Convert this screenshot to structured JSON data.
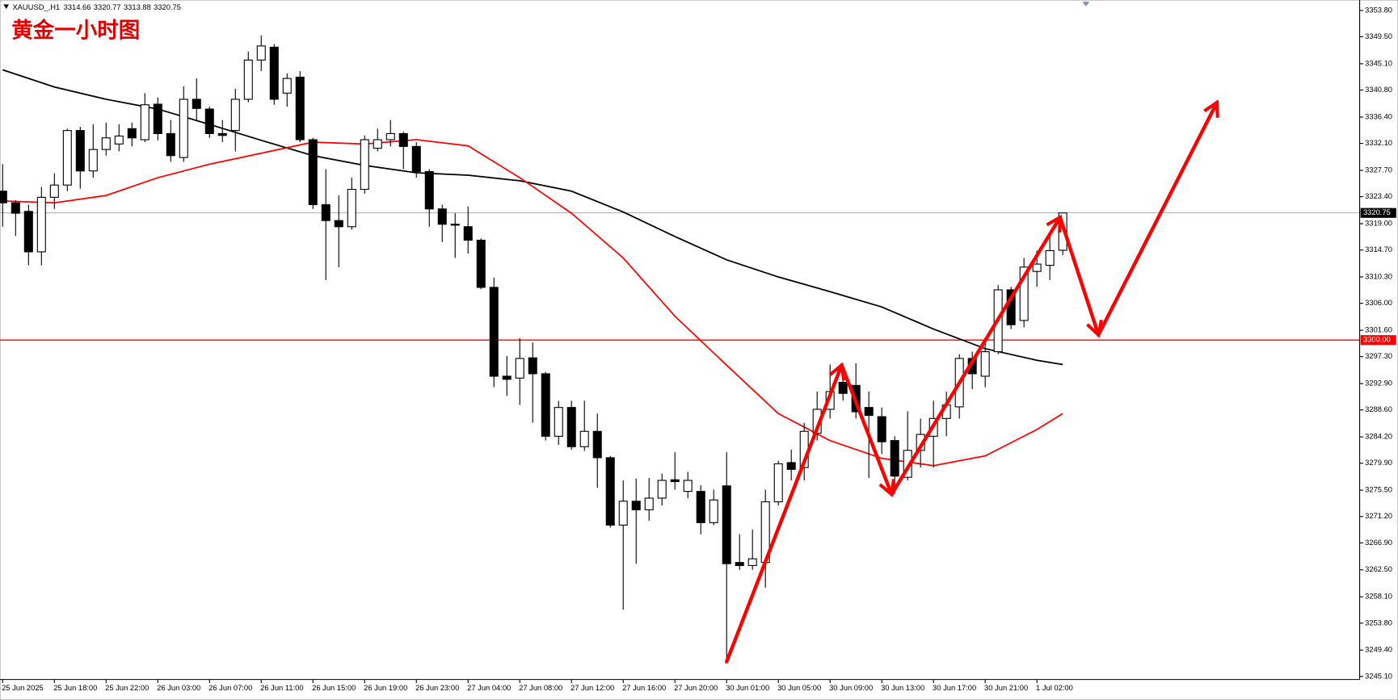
{
  "chart_data": {
    "type": "candlestick",
    "title": "黄金一小时图",
    "symbol": "XAUUSD_,H1",
    "categories": [
      "25 Jun 2025",
      null,
      null,
      null,
      "25 Jun 18:00",
      null,
      null,
      null,
      "25 Jun 22:00",
      null,
      null,
      null,
      "26 Jun 03:00",
      null,
      null,
      null,
      "26 Jun 07:00",
      null,
      null,
      null,
      "26 Jun 11:00",
      null,
      null,
      null,
      "26 Jun 15:00",
      null,
      null,
      null,
      "26 Jun 19:00",
      null,
      null,
      null,
      "26 Jun 23:00",
      null,
      null,
      null,
      "27 Jun 04:00",
      null,
      null,
      null,
      "27 Jun 08:00",
      null,
      null,
      null,
      "27 Jun 12:00",
      null,
      null,
      null,
      "27 Jun 16:00",
      null,
      null,
      null,
      "27 Jun 20:00",
      null,
      null,
      null,
      "30 Jun 01:00",
      null,
      null,
      null,
      "30 Jun 05:00",
      null,
      null,
      null,
      "30 Jun 09:00",
      null,
      null,
      null,
      "30 Jun 13:00",
      null,
      null,
      null,
      "30 Jun 17:00",
      null,
      null,
      null,
      "30 Jun 21:00",
      null,
      null,
      null,
      "1 Jul 02:00",
      null,
      null
    ],
    "open": [
      3324.3,
      3322.4,
      3321.0,
      3314.4,
      3323.3,
      3325.3,
      3334.2,
      3327.6,
      3331.1,
      3332.0,
      3334.5,
      3332.7,
      3338.5,
      3333.7,
      3329.8,
      3339.3,
      3337.7,
      3333.7,
      3334.2,
      3339.3,
      3345.7,
      3347.8,
      3340.3,
      3342.9,
      3332.7,
      3322.1,
      3319.5,
      3318.5,
      3324.6,
      3331.3,
      3332.7,
      3333.7,
      3331.6,
      3327.5,
      3321.4,
      3318.9,
      3318.5,
      3316.3,
      3308.6,
      3294.1,
      3293.8,
      3297.1,
      3294.5,
      3284.3,
      3289.0,
      3282.6,
      3285.1,
      3280.8,
      3269.8,
      3273.7,
      3272.3,
      3274.2,
      3277.2,
      3275.3,
      3275.3,
      3270.2,
      3276.2,
      3263.7,
      3263.2,
      3263.7,
      3273.6,
      3280.0,
      3279.2,
      3284.8,
      3288.7,
      3293.1,
      3292.6,
      3289.0,
      3287.5,
      3283.6,
      3277.6,
      3282.0,
      3284.3,
      3287.2,
      3289.1,
      3297.0,
      3294.1,
      3298.1,
      3308.2,
      3303.2,
      3311.2,
      3312.2,
      3314.66
    ],
    "high": [
      3328.7,
      3322.8,
      3322.1,
      3325.0,
      3327.2,
      3334.5,
      3334.8,
      3335.2,
      3335.5,
      3335.2,
      3335.5,
      3340.3,
      3339.6,
      3335.9,
      3341.4,
      3342.7,
      3338.1,
      3335.9,
      3341.0,
      3347.1,
      3349.7,
      3348.3,
      3343.5,
      3343.9,
      3333.0,
      3327.9,
      3323.6,
      3326.5,
      3333.4,
      3334.5,
      3335.9,
      3334.0,
      3332.3,
      3327.9,
      3322.1,
      3320.7,
      3321.8,
      3316.6,
      3310.2,
      3297.4,
      3300.3,
      3299.6,
      3294.8,
      3290.1,
      3290.1,
      3290.1,
      3288.0,
      3281.1,
      3277.1,
      3277.4,
      3277.5,
      3278.2,
      3281.7,
      3278.5,
      3276.3,
      3275.6,
      3281.7,
      3268.3,
      3269.1,
      3275.6,
      3280.3,
      3282.1,
      3286.5,
      3291.6,
      3296.0,
      3296.0,
      3296.2,
      3291.6,
      3289.0,
      3284.3,
      3288.4,
      3287.2,
      3290.1,
      3291.6,
      3297.7,
      3298.1,
      3300.3,
      3309.0,
      3308.7,
      3313.4,
      3314.6,
      3317.0,
      3320.77
    ],
    "low": [
      3318.5,
      3317.0,
      3312.2,
      3312.2,
      3321.4,
      3324.3,
      3324.7,
      3326.5,
      3330.1,
      3330.8,
      3331.6,
      3332.3,
      3332.6,
      3329.1,
      3329.1,
      3335.9,
      3333.0,
      3332.3,
      3330.8,
      3338.8,
      3343.9,
      3338.4,
      3338.1,
      3332.3,
      3321.4,
      3309.8,
      3311.9,
      3318.0,
      3323.9,
      3330.8,
      3331.6,
      3327.9,
      3326.5,
      3318.5,
      3316.0,
      3313.4,
      3314.1,
      3308.3,
      3292.3,
      3290.9,
      3289.4,
      3286.5,
      3283.6,
      3282.9,
      3282.1,
      3281.9,
      3275.9,
      3269.4,
      3256.0,
      3263.5,
      3270.5,
      3273.0,
      3275.6,
      3274.2,
      3268.3,
      3269.8,
      3247.3,
      3262.5,
      3262.5,
      3259.6,
      3273.0,
      3277.1,
      3277.1,
      3283.6,
      3287.2,
      3290.1,
      3287.2,
      3277.5,
      3281.4,
      3274.9,
      3277.1,
      3279.2,
      3279.2,
      3284.3,
      3287.2,
      3292.0,
      3292.3,
      3297.7,
      3301.8,
      3302.1,
      3308.7,
      3309.8,
      3313.88
    ],
    "close": [
      3322.4,
      3320.7,
      3314.4,
      3323.3,
      3325.3,
      3334.2,
      3327.6,
      3331.1,
      3333.0,
      3333.3,
      3333.0,
      3338.4,
      3333.7,
      3330.1,
      3339.3,
      3337.8,
      3333.7,
      3333.4,
      3339.3,
      3345.7,
      3348.0,
      3339.3,
      3342.7,
      3332.7,
      3322.1,
      3319.5,
      3318.5,
      3324.6,
      3332.7,
      3332.7,
      3333.7,
      3331.6,
      3327.5,
      3321.4,
      3318.9,
      3318.8,
      3316.3,
      3308.6,
      3294.1,
      3293.6,
      3297.0,
      3294.5,
      3284.3,
      3289.0,
      3282.6,
      3285.1,
      3280.8,
      3269.8,
      3273.7,
      3272.3,
      3274.2,
      3277.1,
      3276.9,
      3277.1,
      3270.2,
      3273.9,
      3263.5,
      3263.2,
      3264.3,
      3273.6,
      3279.8,
      3278.9,
      3285.1,
      3288.7,
      3291.6,
      3291.3,
      3288.3,
      3287.7,
      3283.4,
      3277.8,
      3282.0,
      3284.6,
      3287.2,
      3289.4,
      3297.0,
      3294.5,
      3298.1,
      3308.2,
      3302.5,
      3311.9,
      3312.4,
      3314.6,
      3320.75
    ],
    "up_color": "#ffffff",
    "down_color": "#000000",
    "moving_averages": [
      {
        "color": "#000000",
        "x": [
          0,
          4,
          8,
          12,
          16,
          20,
          24,
          28,
          32,
          36,
          40,
          44,
          48,
          52,
          56,
          60,
          64,
          68,
          72,
          76,
          80,
          82
        ],
        "values": [
          3344.1,
          3341.3,
          3339.3,
          3337.7,
          3335.2,
          3332.6,
          3330.1,
          3328.5,
          3327.3,
          3326.9,
          3326.0,
          3324.3,
          3320.9,
          3316.9,
          3313.1,
          3310.3,
          3307.9,
          3305.4,
          3301.8,
          3298.6,
          3296.7,
          3296.0
        ]
      },
      {
        "color": "#ff0000",
        "x": [
          0,
          4,
          8,
          12,
          16,
          20,
          24,
          28,
          32,
          36,
          40,
          44,
          48,
          52,
          56,
          60,
          64,
          68,
          72,
          76,
          80,
          82
        ],
        "values": [
          3322.7,
          3322.4,
          3323.6,
          3326.5,
          3328.7,
          3330.5,
          3332.3,
          3332.0,
          3332.7,
          3331.7,
          3326.5,
          3320.7,
          3313.4,
          3303.9,
          3295.9,
          3288.0,
          3283.6,
          3280.7,
          3279.5,
          3281.1,
          3285.4,
          3288.0
        ]
      }
    ],
    "levels": [
      {
        "value": 3300,
        "label": "3300.00",
        "color": "#ff0000"
      }
    ],
    "ylim": [
      3244.6,
      3355.5
    ],
    "yticks": [
      {
        "value": 3245.1,
        "label": "3245.10"
      },
      {
        "value": 3249.4,
        "label": "3249.40"
      },
      {
        "value": 3253.8,
        "label": "3253.80"
      },
      {
        "value": 3258.1,
        "label": "3258.10"
      },
      {
        "value": 3262.5,
        "label": "3262.50"
      },
      {
        "value": 3266.9,
        "label": "3266.90"
      },
      {
        "value": 3271.2,
        "label": "3271.20"
      },
      {
        "value": 3275.5,
        "label": "3275.50"
      },
      {
        "value": 3279.9,
        "label": "3279.90"
      },
      {
        "value": 3284.2,
        "label": "3284.20"
      },
      {
        "value": 3288.6,
        "label": "3288.60"
      },
      {
        "value": 3292.9,
        "label": "3292.90"
      },
      {
        "value": 3297.3,
        "label": "3297.30"
      },
      {
        "value": 3301.6,
        "label": "3301.60"
      },
      {
        "value": 3306.0,
        "label": "3306.00"
      },
      {
        "value": 3310.3,
        "label": "3310.30"
      },
      {
        "value": 3314.7,
        "label": "3314.70"
      },
      {
        "value": 3319.0,
        "label": "3319.00"
      },
      {
        "value": 3323.4,
        "label": "3323.40"
      },
      {
        "value": 3327.7,
        "label": "3327.70"
      },
      {
        "value": 3332.1,
        "label": "3332.10"
      },
      {
        "value": 3336.4,
        "label": "3336.40"
      },
      {
        "value": 3340.8,
        "label": "3340.80"
      },
      {
        "value": 3345.1,
        "label": "3345.10"
      },
      {
        "value": 3349.5,
        "label": "3349.50"
      },
      {
        "value": 3353.8,
        "label": "3353.80"
      }
    ]
  }
}
